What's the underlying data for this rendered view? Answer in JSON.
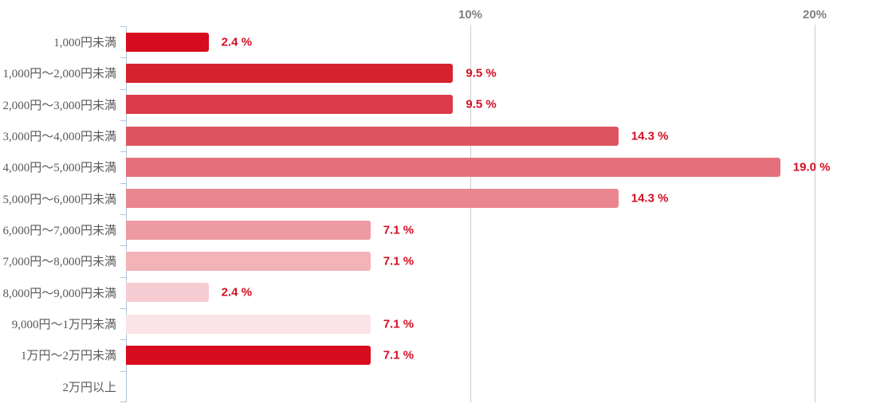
{
  "chart_data": {
    "type": "bar",
    "orientation": "horizontal",
    "title": "",
    "xlabel": "",
    "ylabel": "",
    "unit": "%",
    "xlim": [
      0,
      22.4
    ],
    "grid": "vertical",
    "legend": "none",
    "x_ticks": [
      {
        "value": 10,
        "label": "10%"
      },
      {
        "value": 20,
        "label": "20%"
      }
    ],
    "categories": [
      "1,000円未満",
      "1,000円〜2,000円未満",
      "2,000円〜3,000円未満",
      "3,000円〜4,000円未満",
      "4,000円〜5,000円未満",
      "5,000円〜6,000円未満",
      "6,000円〜7,000円未満",
      "7,000円〜8,000円未満",
      "8,000円〜9,000円未満",
      "9,000円〜1万円未満",
      "1万円〜2万円未満",
      "2万円以上"
    ],
    "values": [
      2.4,
      9.5,
      9.5,
      14.3,
      19.0,
      14.3,
      7.1,
      7.1,
      2.4,
      7.1,
      7.1,
      0
    ],
    "value_labels": [
      "2.4 %",
      "9.5 %",
      "9.5 %",
      "14.3 %",
      "19.0 %",
      "14.3 %",
      "7.1 %",
      "7.1 %",
      "2.4 %",
      "7.1 %",
      "7.1 %",
      ""
    ],
    "bar_colors": [
      "#d70c1e",
      "#d6222f",
      "#d93b48",
      "#de5460",
      "#e3707b",
      "#e9868f",
      "#ee9aa3",
      "#f2b3b9",
      "#f6cdd2",
      "#fae4e7",
      "#d70c1e",
      "#ffffff"
    ],
    "colors": {
      "value_label": "#d40e24",
      "category_label": "#595959",
      "axis_tick_label": "#7f7f7f",
      "gridline": "#cccccc",
      "axis_line": "#b3c6d6",
      "background": "#ffffff"
    }
  }
}
